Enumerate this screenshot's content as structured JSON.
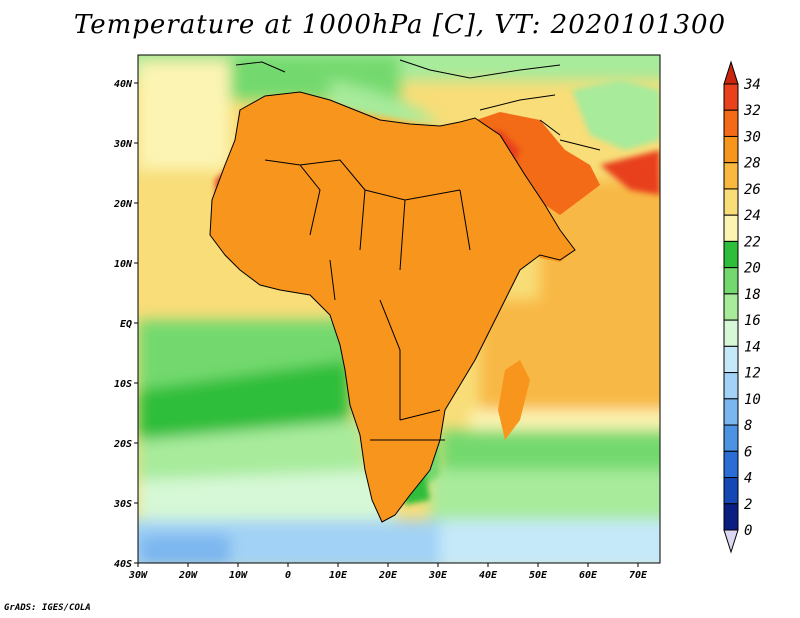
{
  "title": "Temperature at 1000hPa [C], VT: 2020101300",
  "footer": "GrADS: IGES/COLA",
  "map": {
    "variable": "Temperature at 1000hPa",
    "units": "C",
    "valid_time": "2020101300",
    "lat_labels": [
      "40N",
      "30N",
      "20N",
      "10N",
      "EQ",
      "10S",
      "20S",
      "30S",
      "40S"
    ],
    "lon_labels": [
      "30W",
      "20W",
      "10W",
      "0",
      "10E",
      "20E",
      "30E",
      "40E",
      "50E",
      "60E",
      "70E"
    ]
  },
  "colorbar": {
    "labels": [
      "34",
      "32",
      "30",
      "28",
      "26",
      "24",
      "22",
      "20",
      "18",
      "16",
      "14",
      "12",
      "10",
      "8",
      "6",
      "4",
      "2",
      "0"
    ],
    "colors": [
      "#c8260f",
      "#e8411c",
      "#f36b16",
      "#f8951c",
      "#f9b840",
      "#f8dd78",
      "#fcf4b3",
      "#2fbe3b",
      "#73d96e",
      "#a7eb9b",
      "#d6f8d6",
      "#c6e9f9",
      "#a2d2f5",
      "#7ab6ef",
      "#4c93e3",
      "#2a6dd5",
      "#1547b5",
      "#0b1e82",
      "#dcd8f2"
    ]
  }
}
